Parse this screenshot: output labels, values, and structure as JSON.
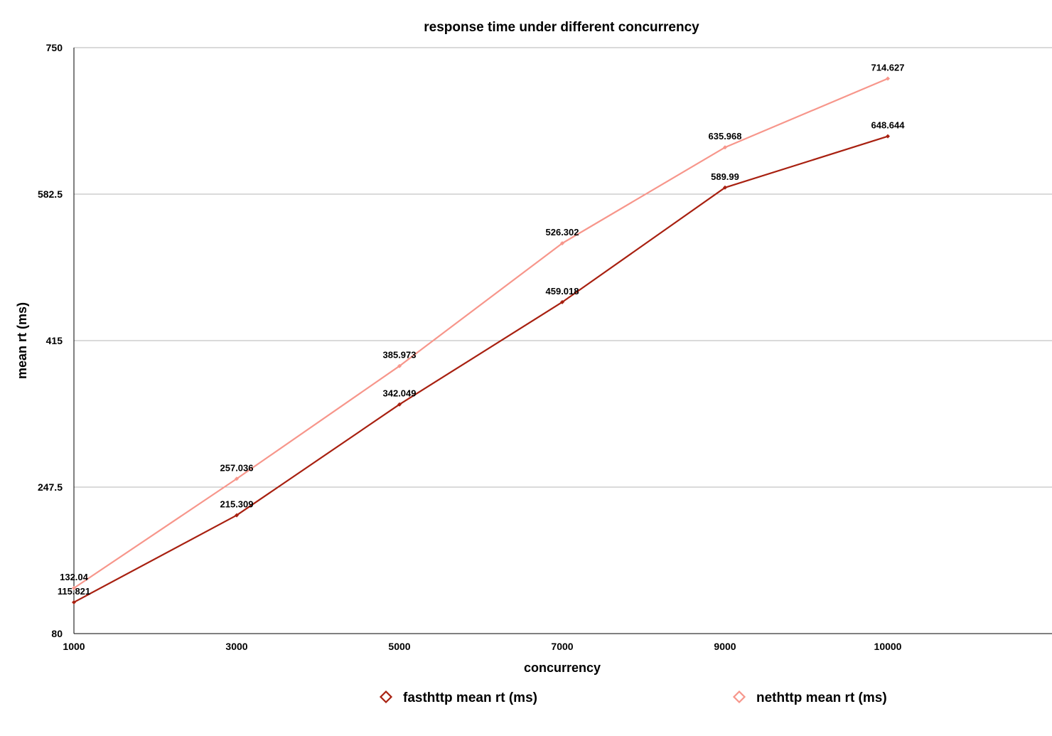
{
  "chart_data": {
    "type": "line",
    "title": "response time under different concurrency",
    "xlabel": "concurrency",
    "ylabel": "mean rt (ms)",
    "categories": [
      "1000",
      "3000",
      "5000",
      "7000",
      "9000",
      "10000"
    ],
    "x_ticks": [
      "1000",
      "3000",
      "5000",
      "7000",
      "9000",
      "10000"
    ],
    "y_ticks": [
      "80",
      "247.5",
      "415",
      "582.5",
      "750"
    ],
    "ylim": [
      80,
      750
    ],
    "grid": "horizontal",
    "legend_position": "bottom",
    "series": [
      {
        "name": "fasthttp mean rt (ms)",
        "color": "#a82010",
        "values": [
          115.821,
          215.309,
          342.049,
          459.018,
          589.99,
          648.644
        ],
        "labels": [
          "115.821",
          "215.309",
          "342.049",
          "459.018",
          "589.99",
          "648.644"
        ]
      },
      {
        "name": "nethttp mean rt (ms)",
        "color": "#f7968b",
        "values": [
          132.04,
          257.036,
          385.973,
          526.302,
          635.968,
          714.627
        ],
        "labels": [
          "132.04",
          "257.036",
          "385.973",
          "526.302",
          "635.968",
          "714.627"
        ]
      }
    ]
  }
}
